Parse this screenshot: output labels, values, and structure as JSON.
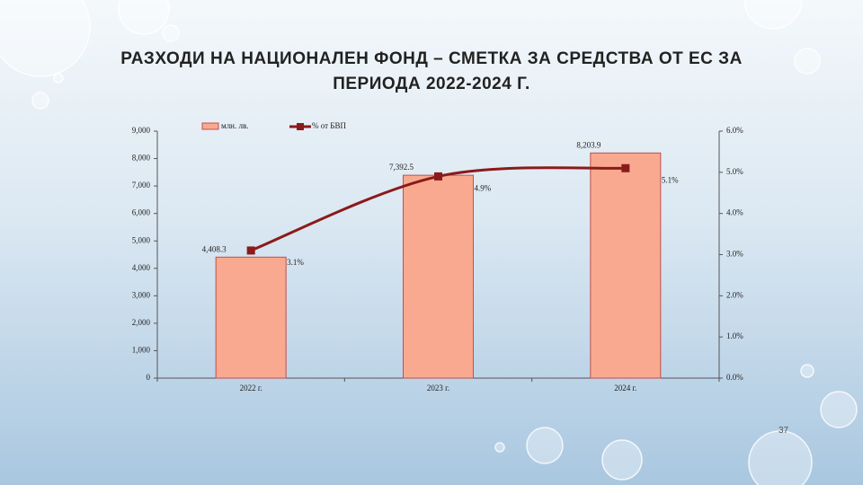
{
  "page_number": "37",
  "chart_data": {
    "type": "bar_line",
    "title": "РАЗХОДИ НА НАЦИОНАЛЕН ФОНД – СМЕТКА ЗА СРЕДСТВА ОТ ЕС ЗА ПЕРИОДА 2022-2024 Г.",
    "categories": [
      "2022 г.",
      "2023 г.",
      "2024 г."
    ],
    "series": [
      {
        "name": "млн. лв.",
        "type": "bar",
        "color": "#f9a98f",
        "values": [
          4408.3,
          7392.5,
          8203.9
        ],
        "value_labels": [
          "4,408.3",
          "7,392.5",
          "8,203.9"
        ]
      },
      {
        "name": "% от БВП",
        "type": "line",
        "axis": "y2",
        "color": "#8b1a1a",
        "values": [
          3.1,
          4.9,
          5.1
        ],
        "value_labels": [
          "3.1%",
          "4.9%",
          "5.1%"
        ]
      }
    ],
    "ylim": [
      0,
      9000
    ],
    "yticks": [
      0,
      {
        "value": 1000,
        "label": "1,000"
      },
      {
        "value": 2000,
        "label": "2,000"
      },
      {
        "value": 3000,
        "label": "3,000"
      },
      {
        "value": 4000,
        "label": "4,000"
      },
      {
        "value": 5000,
        "label": "5,000"
      },
      {
        "value": 6000,
        "label": "6,000"
      },
      {
        "value": 7000,
        "label": "7,000"
      },
      {
        "value": 8000,
        "label": "8,000"
      },
      {
        "value": 9000,
        "label": "9,000"
      }
    ],
    "y2lim": [
      0,
      6
    ],
    "y2ticks": [
      {
        "value": 0,
        "label": "0.0%"
      },
      {
        "value": 1,
        "label": "1.0%"
      },
      {
        "value": 2,
        "label": "2.0%"
      },
      {
        "value": 3,
        "label": "3.0%"
      },
      {
        "value": 4,
        "label": "4.0%"
      },
      {
        "value": 5,
        "label": "5.0%"
      },
      {
        "value": 6,
        "label": "6.0%"
      }
    ],
    "legend": "top"
  }
}
